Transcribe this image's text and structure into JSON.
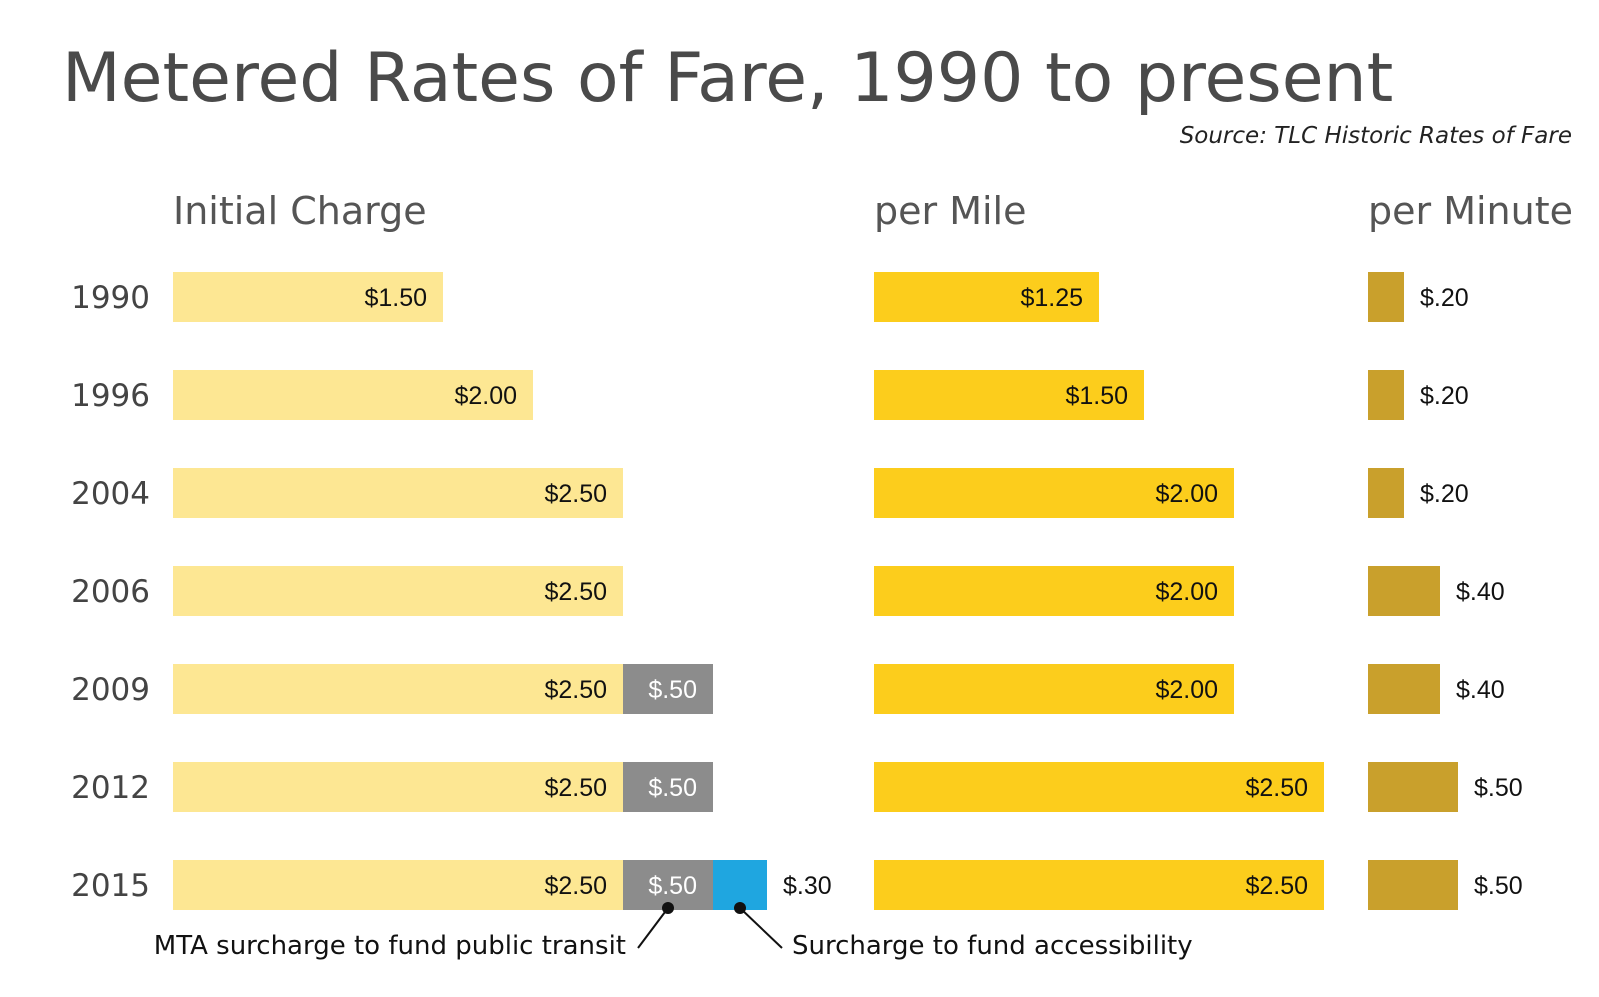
{
  "chart_data": {
    "type": "bar",
    "title": "Metered Rates of Fare, 1990 to present",
    "source": "Source: TLC Historic Rates of Fare",
    "categories": [
      "1990",
      "1996",
      "2004",
      "2006",
      "2009",
      "2012",
      "2015"
    ],
    "panels": [
      {
        "name": "Initial Charge",
        "series": [
          {
            "name": "Initial Charge",
            "color": "#fde793",
            "label_color": "#111111",
            "values": [
              1.5,
              2.0,
              2.5,
              2.5,
              2.5,
              2.5,
              2.5
            ],
            "labels": [
              "$1.50",
              "$2.00",
              "$2.50",
              "$2.50",
              "$2.50",
              "$2.50",
              "$2.50"
            ]
          },
          {
            "name": "MTA surcharge to fund public transit",
            "color": "#8c8c8c",
            "label_color": "#ffffff",
            "values": [
              0,
              0,
              0,
              0,
              0.5,
              0.5,
              0.5
            ],
            "labels": [
              "",
              "",
              "",
              "",
              "$.50",
              "$.50",
              "$.50"
            ]
          },
          {
            "name": "Surcharge to fund accessibility",
            "color": "#1fa6e0",
            "label_color": "#111111",
            "values": [
              0,
              0,
              0,
              0,
              0,
              0,
              0.3
            ],
            "labels": [
              "",
              "",
              "",
              "",
              "",
              "",
              "$.30"
            ]
          }
        ]
      },
      {
        "name": "per Mile",
        "series": [
          {
            "name": "per Mile",
            "color": "#fccd1c",
            "label_color": "#111111",
            "values": [
              1.25,
              1.5,
              2.0,
              2.0,
              2.0,
              2.5,
              2.5
            ],
            "labels": [
              "$1.25",
              "$1.50",
              "$2.00",
              "$2.00",
              "$2.00",
              "$2.50",
              "$2.50"
            ]
          }
        ]
      },
      {
        "name": "per Minute",
        "series": [
          {
            "name": "per Minute",
            "color": "#c9a02c",
            "label_color": "#111111",
            "values": [
              0.2,
              0.2,
              0.2,
              0.4,
              0.4,
              0.5,
              0.5
            ],
            "labels": [
              "$.20",
              "$.20",
              "$.20",
              "$.40",
              "$.40",
              "$.50",
              "$.50"
            ]
          }
        ]
      }
    ],
    "annotations": [
      {
        "text": "MTA surcharge to fund public transit",
        "points_to": "MTA surcharge to fund public transit"
      },
      {
        "text": "Surcharge to fund accessibility",
        "points_to": "Surcharge to fund accessibility"
      }
    ],
    "grid": false,
    "legend": "none"
  }
}
